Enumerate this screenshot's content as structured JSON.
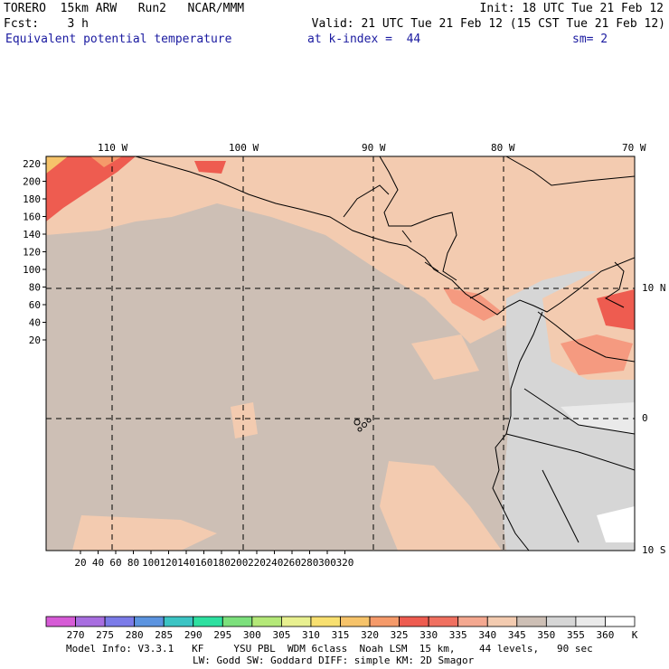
{
  "header": {
    "model": "TORERO  15km ARW   Run2   NCAR/MMM",
    "init": "Init: 18 UTC Tue 21 Feb 12",
    "fcst": "Fcst:    3 h",
    "valid": "Valid: 21 UTC Tue 21 Feb 12 (15 CST Tue 21 Feb 12)",
    "field": "Equivalent potential temperature",
    "kindex": "at k-index =  44",
    "smooth": "sm= 2"
  },
  "map": {
    "lon_labels": [
      "110 W",
      "100 W",
      "90 W",
      "80 W",
      "70 W"
    ],
    "lat_labels": [
      "10 N",
      "0",
      "10 S"
    ],
    "y_ticks": [
      "220",
      "200",
      "180",
      "160",
      "140",
      "120",
      "100",
      "80",
      "60",
      "40",
      "20"
    ],
    "x_ticks": [
      "20",
      "40",
      "60",
      "80",
      "100",
      "120",
      "140",
      "160",
      "180",
      "200",
      "220",
      "240",
      "260",
      "280",
      "300",
      "320"
    ],
    "colors": {
      "background_field": "#cdbfb5",
      "warm_field": "#f3cbb0",
      "hot_field": "#f59a80",
      "very_hot_field": "#ee5c50",
      "cool_field": "#d6d6d6",
      "coast": "#000000"
    }
  },
  "colorbar": {
    "unit": "K",
    "levels": [
      "270",
      "275",
      "280",
      "285",
      "290",
      "295",
      "300",
      "305",
      "310",
      "315",
      "320",
      "325",
      "330",
      "335",
      "340",
      "345",
      "350",
      "355",
      "360"
    ],
    "colors": [
      "#d65bd6",
      "#a86ee0",
      "#7b7be8",
      "#5c94e0",
      "#3cc4c4",
      "#2ee0a0",
      "#7ce07c",
      "#b4e878",
      "#e8f090",
      "#f8e070",
      "#f6c36a",
      "#f59a6a",
      "#ee5c50",
      "#f07060",
      "#f4a890",
      "#f3cbb0",
      "#cdbfb5",
      "#d6d6d6",
      "#eaeaea",
      "#ffffff"
    ]
  },
  "footer": {
    "line1": "Model Info: V3.3.1   KF     YSU PBL  WDM 6class  Noah LSM  15 km,    44 levels,   90 sec",
    "line2": "LW: Godd SW: Goddard DIFF: simple KM: 2D Smagor"
  }
}
